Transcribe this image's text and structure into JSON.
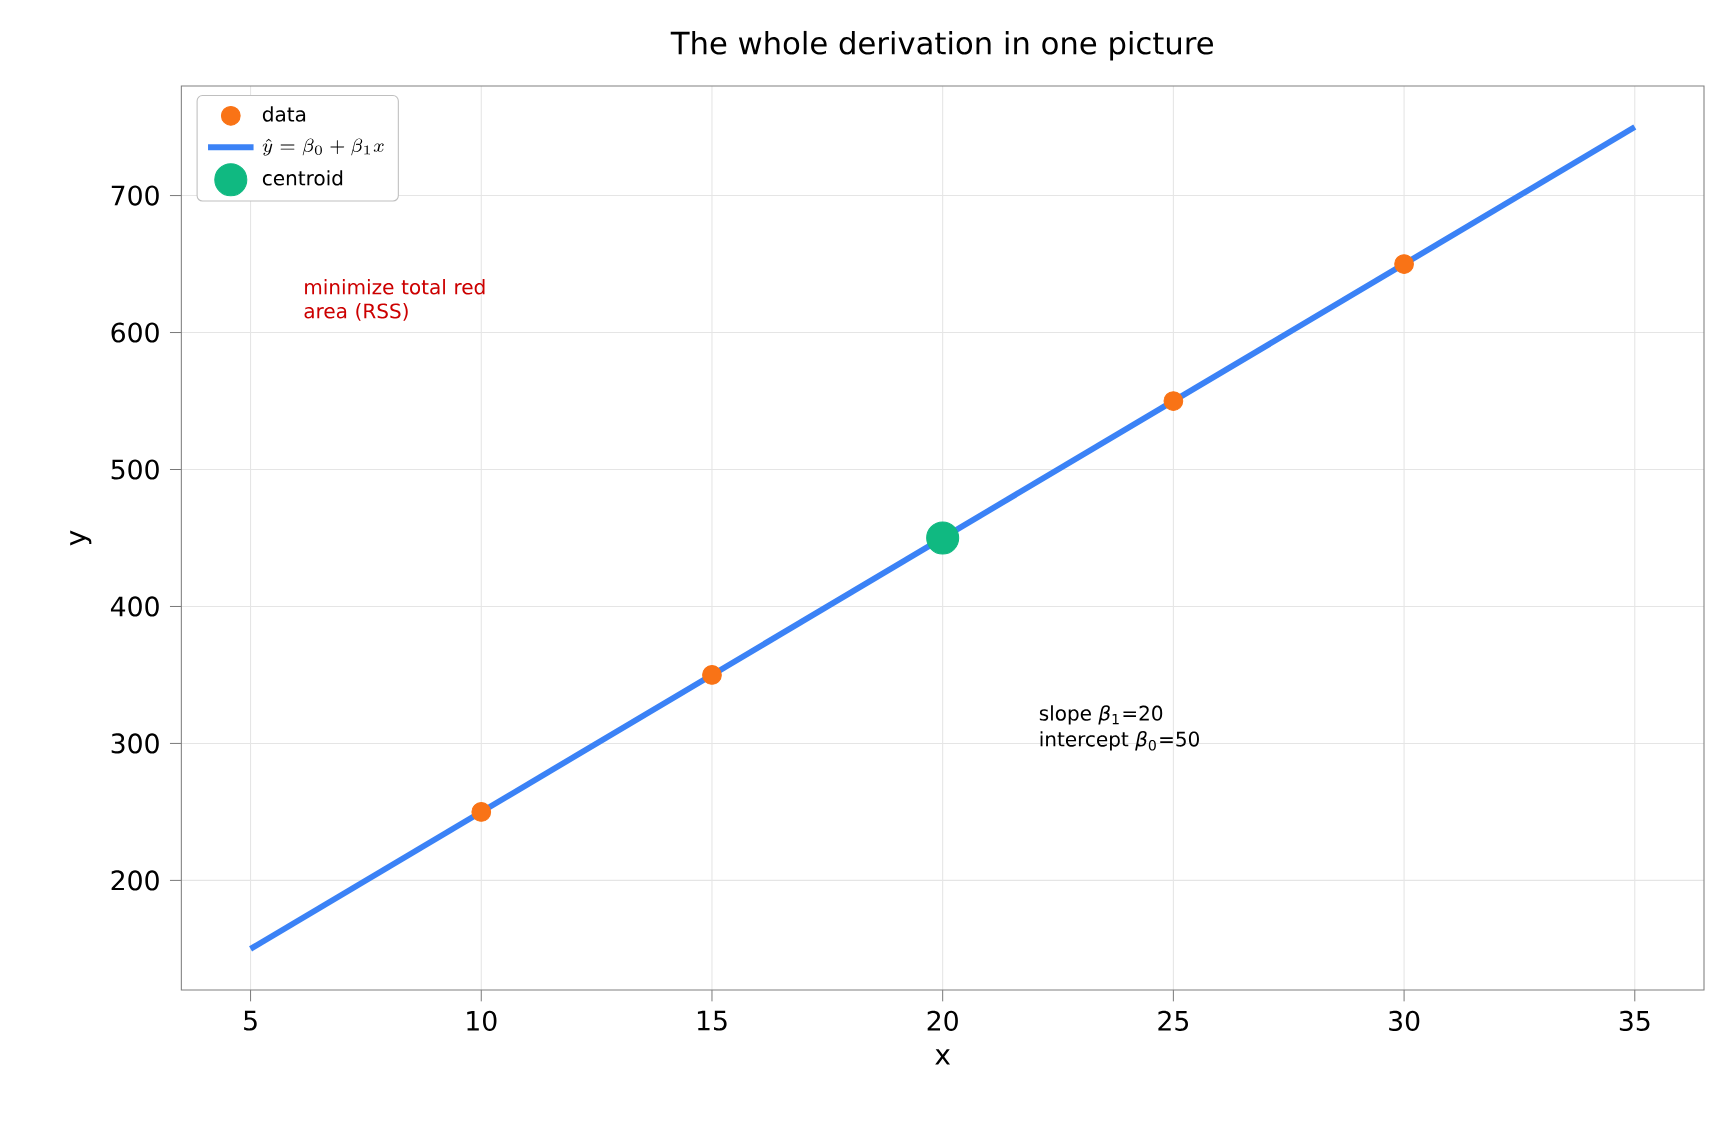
{
  "chart_data": {
    "type": "scatter",
    "title": "The whole derivation in one picture",
    "xlabel": "x",
    "ylabel": "y",
    "series": [
      {
        "name": "data",
        "color": "#f97316",
        "marker": "circle",
        "x": [
          10,
          15,
          20,
          25,
          30
        ],
        "values": [
          250,
          350,
          null,
          550,
          650
        ]
      },
      {
        "name": "\\hat{y}=\\beta_0+\\beta_1 x",
        "type": "line",
        "marker": "none",
        "color": "#3b82f6",
        "x": [
          5,
          35
        ],
        "values": [
          150,
          750
        ]
      },
      {
        "name": "centroid",
        "marker": "circle",
        "color": "#10b981",
        "x": [
          20
        ],
        "values": [
          450
        ]
      }
    ],
    "xlim": [
      3.5,
      36.5
    ],
    "ylim": [
      120,
      780
    ],
    "xticks": [
      5,
      10,
      15,
      20,
      25,
      30,
      35
    ],
    "yticks": [
      200,
      300,
      400,
      500,
      600,
      700
    ],
    "grid": true,
    "legend": "top left",
    "annotations": [
      "minimize total red area (RSS)",
      "slope *β*$_{1}$=20",
      "intercept *β*$_{0}$=50"
    ]
  }
}
